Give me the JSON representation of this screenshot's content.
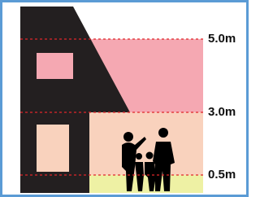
{
  "levels": [
    {
      "label": "5.0m"
    },
    {
      "label": "3.0m"
    },
    {
      "label": "0.5m"
    }
  ]
}
